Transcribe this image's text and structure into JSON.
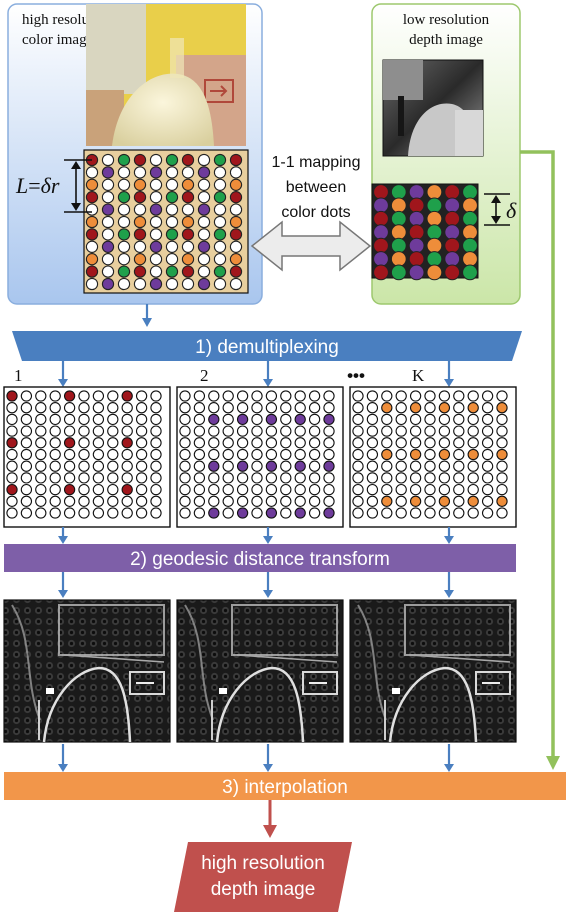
{
  "color_panel": {
    "label_line1": "high resolution",
    "label_line2": "color image",
    "scale_label_L": "L",
    "scale_label_eq": "=",
    "scale_label_delta_r": "δr"
  },
  "depth_panel": {
    "label_line1": "low resolution",
    "label_line2": "depth image",
    "scale_label": "δ"
  },
  "mapping_label": {
    "line1": "1-1 mapping",
    "line2": "between",
    "line3": "color dots"
  },
  "steps": {
    "demultiplexing": "1) demultiplexing",
    "geodesic": "2) geodesic distance transform",
    "interpolation": "3) interpolation"
  },
  "channel_labels": {
    "first": "1",
    "second": "2",
    "ellipsis": "•••",
    "last": "K"
  },
  "output": {
    "line1": "high resolution",
    "line2": "depth image"
  },
  "colors": {
    "color_panel_fill": "#c9dbf3",
    "depth_panel_fill": "#e2f0cf",
    "depth_panel_border": "#9dc86e",
    "demux_bar": "#4a7fc0",
    "geodesic_bar": "#7e5fa8",
    "interp_bar": "#f2964a",
    "output_fill": "#c0504d",
    "arrow_blue": "#4a7fc0",
    "arrow_green": "#92c15c",
    "arrow_red": "#c0504d",
    "dot_red": "#a0161c",
    "dot_green": "#1fa04b",
    "dot_purple": "#6e3b9b",
    "dot_orange": "#ee8d3a"
  },
  "icons": [
    "double-arrow-icon",
    "scale-arrow-icon",
    "down-arrow-icon"
  ]
}
